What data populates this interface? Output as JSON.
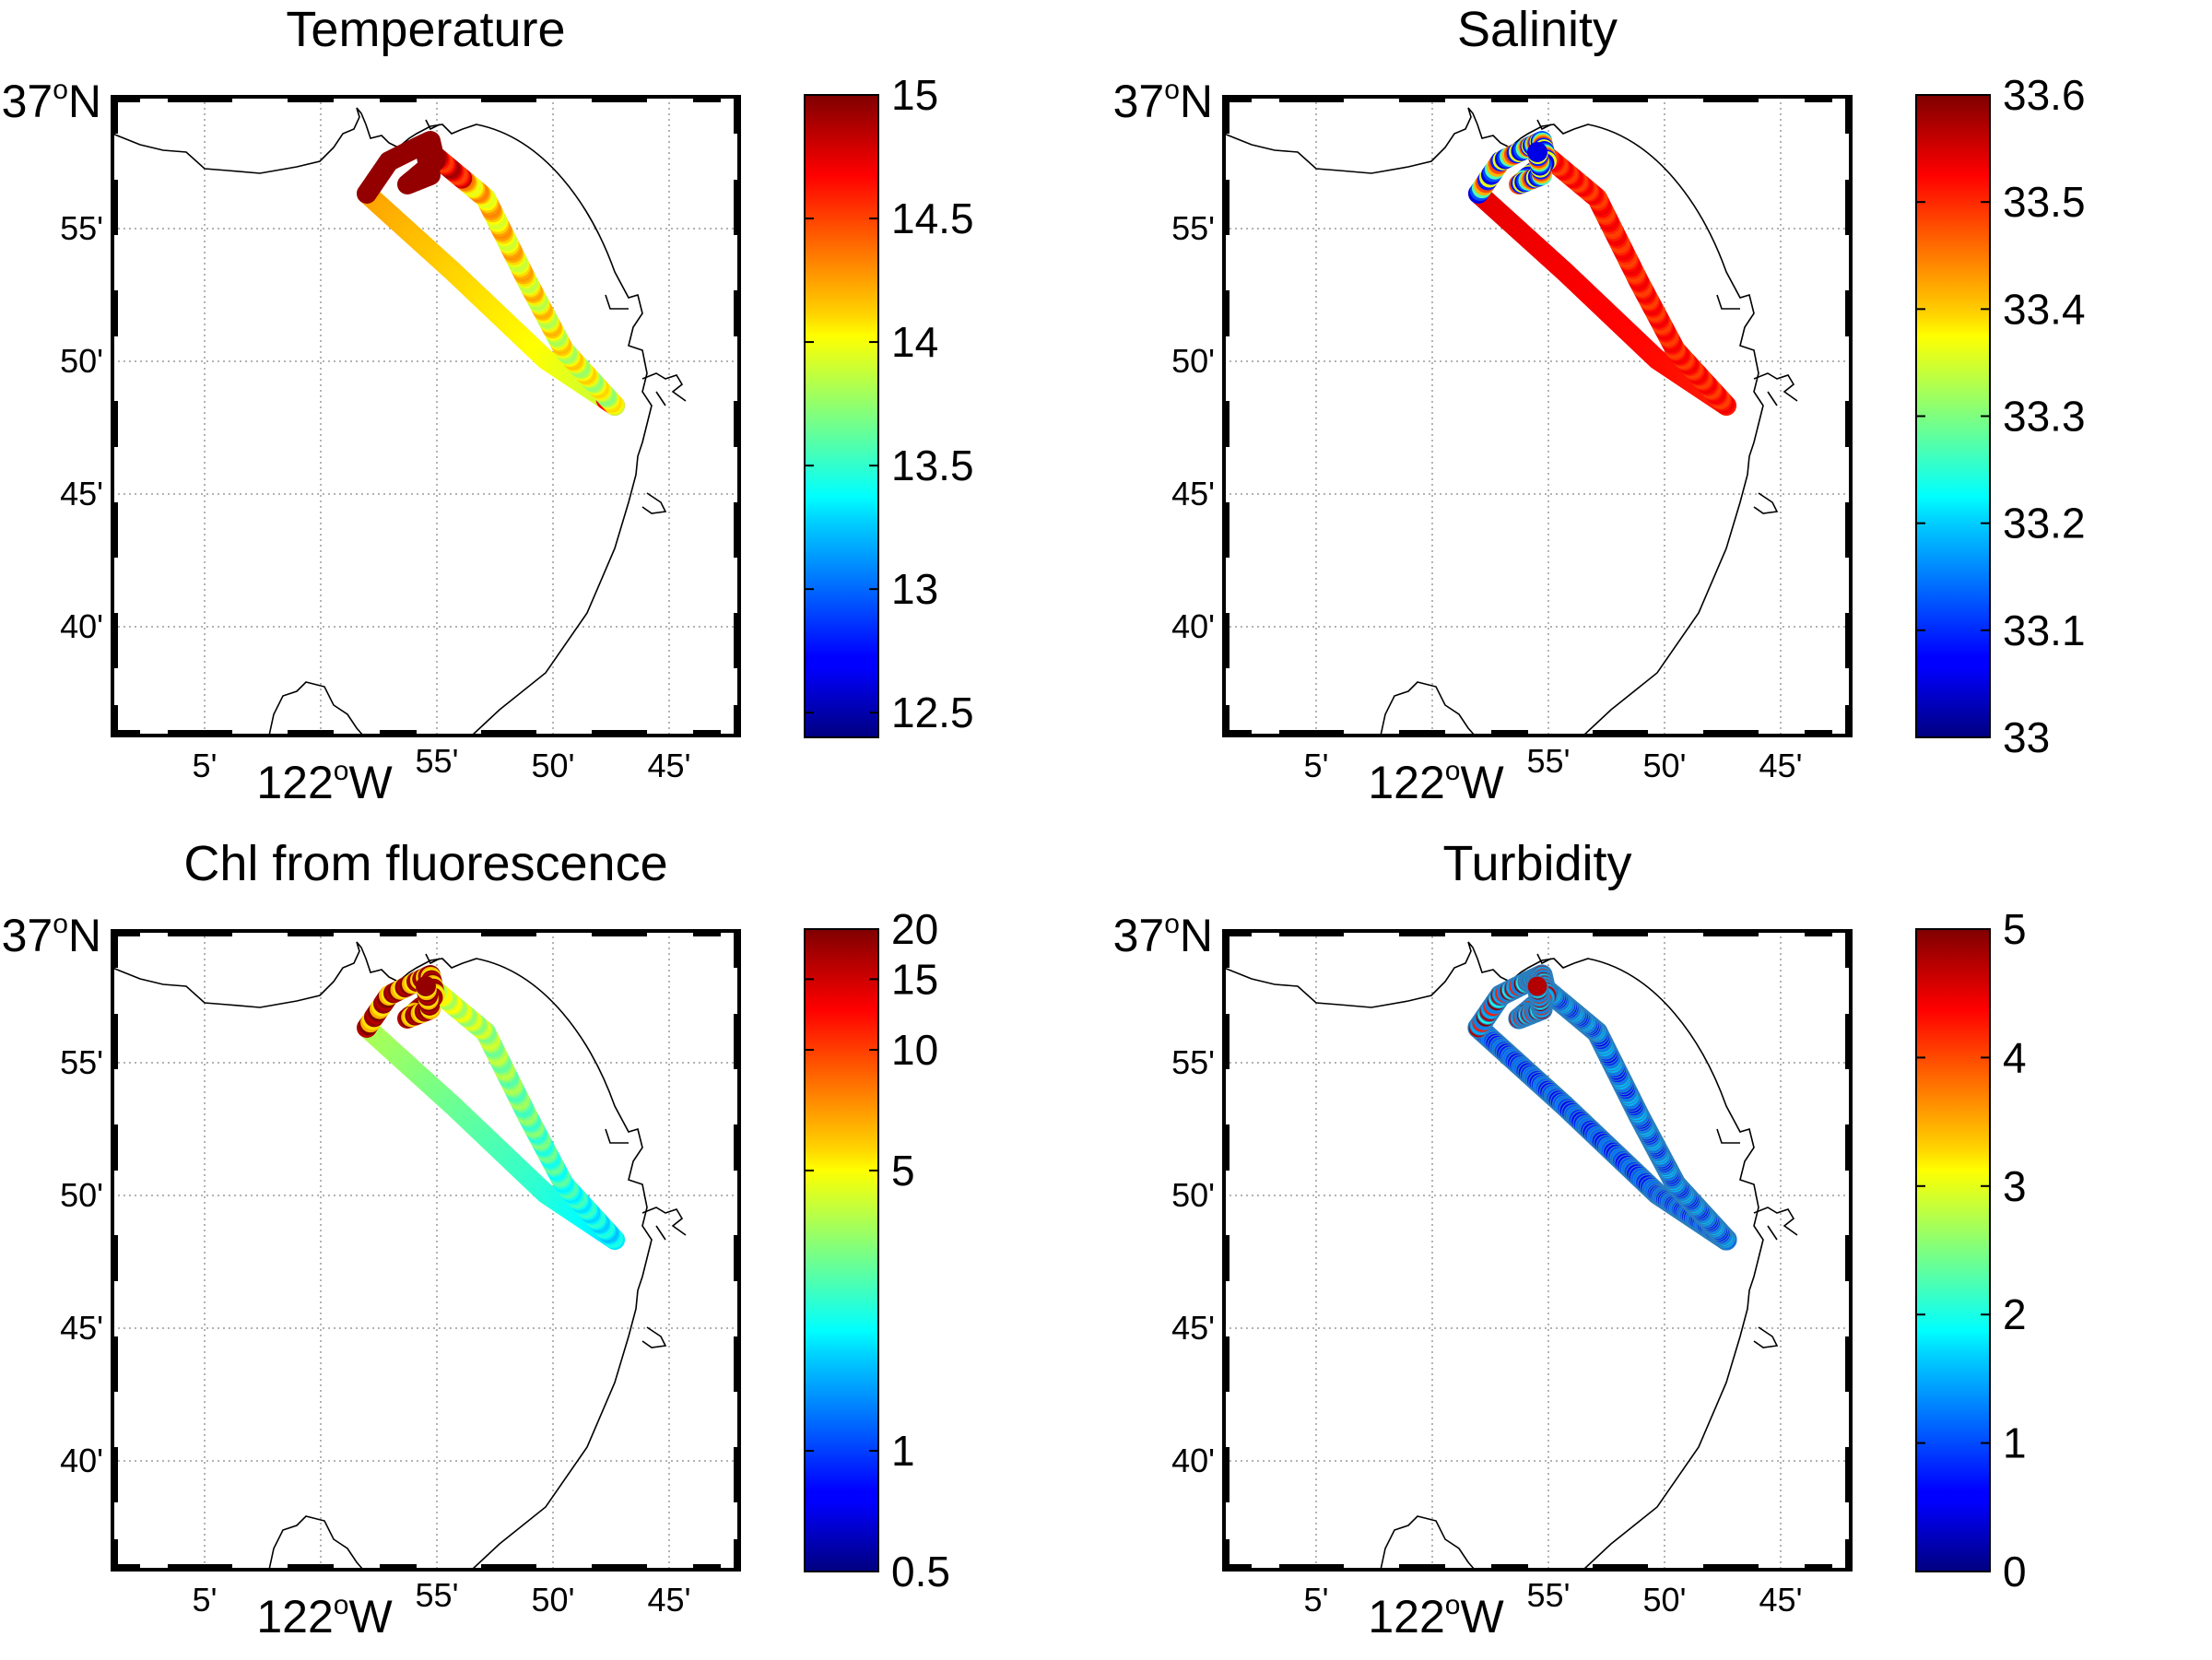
{
  "panels": [
    {
      "id": "temperature",
      "title": "Temperature",
      "colorbar": {
        "ticks": [
          "15",
          "14.5",
          "14",
          "13.5",
          "13",
          "12.5"
        ],
        "tick_values": [
          15,
          14.5,
          14,
          13.5,
          13,
          12.5
        ],
        "range": [
          12.4,
          15.0
        ],
        "scale": "linear"
      }
    },
    {
      "id": "salinity",
      "title": "Salinity",
      "colorbar": {
        "ticks": [
          "33.6",
          "33.5",
          "33.4",
          "33.3",
          "33.2",
          "33.1",
          "33"
        ],
        "tick_values": [
          33.6,
          33.5,
          33.4,
          33.3,
          33.2,
          33.1,
          33.0
        ],
        "range": [
          33.0,
          33.6
        ],
        "scale": "linear"
      }
    },
    {
      "id": "chl",
      "title": "Chl from fluorescence",
      "colorbar": {
        "ticks": [
          "20",
          "15",
          "10",
          "5",
          "1",
          "0.5"
        ],
        "tick_values": [
          20,
          15,
          10,
          5,
          1,
          0.5
        ],
        "range": [
          0.5,
          20
        ],
        "scale": "log"
      }
    },
    {
      "id": "turbidity",
      "title": "Turbidity",
      "colorbar": {
        "ticks": [
          "5",
          "4",
          "3",
          "2",
          "1",
          "0"
        ],
        "tick_values": [
          5,
          4,
          3,
          2,
          1,
          0
        ],
        "range": [
          0,
          5
        ],
        "scale": "linear"
      }
    }
  ],
  "map_axes": {
    "lat_ticks": [
      "55'",
      "50'",
      "45'",
      "40'"
    ],
    "lat_top_deg": "37",
    "lat_top_suffix": "N",
    "lon_ticks": [
      "5'",
      "55'",
      "50'",
      "45'"
    ],
    "lon_main_deg": "122",
    "lon_main_suffix": "W",
    "degree_symbol": "o"
  },
  "colormap": "jet"
}
